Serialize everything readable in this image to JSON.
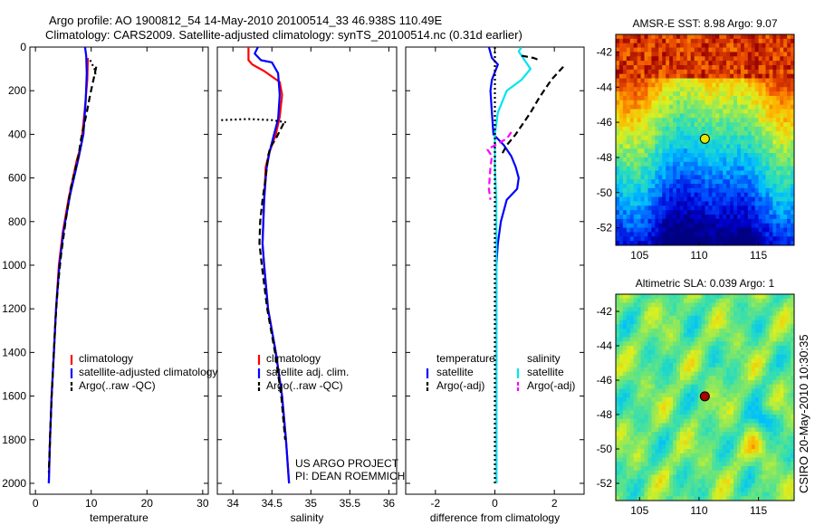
{
  "header": {
    "line1": "Argo profile: AO 1900812_54 14-May-2010 20100514_33 46.938S 110.49E",
    "line2": "Climatology: CARS2009. Satellite-adjusted climatology: synTS_20100514.nc (0.31d earlier)"
  },
  "side_label": "CSIRO 20-May-2010 10:30:35",
  "chart_data": [
    {
      "id": "temperature",
      "type": "line",
      "xlabel": "temperature",
      "ylabel": "",
      "xlim": [
        -1,
        31
      ],
      "ylim": [
        2050,
        0
      ],
      "xticks": [
        0,
        10,
        20,
        30
      ],
      "yticks": [
        0,
        200,
        400,
        600,
        800,
        1000,
        1200,
        1400,
        1600,
        1800,
        2000
      ],
      "legend": [
        {
          "label": "climatology",
          "color": "#ff0000",
          "dash": "solid"
        },
        {
          "label": "satellite-adjusted climatology",
          "color": "#0000ff",
          "dash": "solid"
        },
        {
          "label": "Argo(..raw -QC)",
          "color": "#000000",
          "dash": "dashed"
        }
      ],
      "series": [
        {
          "color": "#ff0000",
          "dash": "solid",
          "points": [
            [
              9.4,
              50
            ],
            [
              9.3,
              150
            ],
            [
              8.8,
              300
            ],
            [
              8.2,
              450
            ],
            [
              7.4,
              520
            ],
            [
              5.9,
              700
            ],
            [
              4.9,
              850
            ],
            [
              4.2,
              1000
            ],
            [
              3.7,
              1200
            ],
            [
              3.3,
              1400
            ],
            [
              2.9,
              1600
            ],
            [
              2.6,
              1800
            ],
            [
              2.4,
              2000
            ]
          ]
        },
        {
          "color": "#0000ff",
          "dash": "solid",
          "points": [
            [
              8.9,
              0
            ],
            [
              9.1,
              40
            ],
            [
              9.2,
              120
            ],
            [
              9.0,
              250
            ],
            [
              8.6,
              400
            ],
            [
              7.8,
              500
            ],
            [
              6.2,
              680
            ],
            [
              5.0,
              850
            ],
            [
              4.3,
              1000
            ],
            [
              3.7,
              1200
            ],
            [
              3.3,
              1400
            ],
            [
              2.9,
              1600
            ],
            [
              2.6,
              1800
            ],
            [
              2.4,
              2000
            ]
          ]
        },
        {
          "color": "#000000",
          "dash": "dashed",
          "points": [
            [
              10.9,
              90
            ],
            [
              10.4,
              150
            ],
            [
              9.8,
              220
            ],
            [
              9.2,
              300
            ],
            [
              8.2,
              420
            ],
            [
              7.7,
              500
            ],
            [
              6.3,
              650
            ],
            [
              5.4,
              800
            ],
            [
              4.6,
              950
            ],
            [
              4.0,
              1100
            ],
            [
              3.6,
              1250
            ],
            [
              3.3,
              1400
            ],
            [
              2.9,
              1600
            ],
            [
              2.6,
              1800
            ],
            [
              2.4,
              1950
            ]
          ]
        },
        {
          "color": "#000000",
          "dash": "dotted",
          "points": [
            [
              9.8,
              60
            ],
            [
              10.6,
              100
            ],
            [
              10.8,
              130
            ]
          ]
        }
      ]
    },
    {
      "id": "salinity",
      "type": "line",
      "xlabel": "salinity",
      "ylabel": "",
      "xlim": [
        33.8,
        36.1
      ],
      "ylim": [
        2050,
        0
      ],
      "xticks": [
        34,
        34.5,
        35,
        35.5,
        36
      ],
      "yticks": [
        0,
        200,
        400,
        600,
        800,
        1000,
        1200,
        1400,
        1600,
        1800,
        2000
      ],
      "legend": [
        {
          "label": "climatology",
          "color": "#ff0000",
          "dash": "solid"
        },
        {
          "label": "satellite adj. clim.",
          "color": "#0000ff",
          "dash": "solid"
        },
        {
          "label": "Argo(..raw -QC)",
          "color": "#000000",
          "dash": "dashed"
        }
      ],
      "annotations": [
        "US ARGO PROJECT",
        "PI: DEAN ROEMMICH"
      ],
      "series": [
        {
          "color": "#ff0000",
          "dash": "solid",
          "points": [
            [
              34.2,
              0
            ],
            [
              34.2,
              60
            ],
            [
              34.25,
              80
            ],
            [
              34.4,
              110
            ],
            [
              34.6,
              160
            ],
            [
              34.63,
              220
            ],
            [
              34.6,
              320
            ],
            [
              34.55,
              400
            ],
            [
              34.47,
              480
            ],
            [
              34.42,
              550
            ],
            [
              34.4,
              700
            ],
            [
              34.38,
              900
            ],
            [
              34.4,
              1000
            ],
            [
              34.45,
              1200
            ],
            [
              34.55,
              1400
            ],
            [
              34.63,
              1600
            ],
            [
              34.68,
              1800
            ],
            [
              34.72,
              2000
            ]
          ]
        },
        {
          "color": "#0000ff",
          "dash": "solid",
          "points": [
            [
              34.32,
              0
            ],
            [
              34.28,
              30
            ],
            [
              34.36,
              60
            ],
            [
              34.5,
              70
            ],
            [
              34.58,
              120
            ],
            [
              34.6,
              220
            ],
            [
              34.58,
              330
            ],
            [
              34.52,
              410
            ],
            [
              34.47,
              480
            ],
            [
              34.43,
              560
            ],
            [
              34.4,
              700
            ],
            [
              34.38,
              900
            ],
            [
              34.4,
              1000
            ],
            [
              34.45,
              1200
            ],
            [
              34.55,
              1400
            ],
            [
              34.63,
              1600
            ],
            [
              34.68,
              1800
            ],
            [
              34.72,
              2000
            ]
          ]
        },
        {
          "color": "#000000",
          "dash": "dashed",
          "points": [
            [
              34.65,
              350
            ],
            [
              34.55,
              420
            ],
            [
              34.48,
              460
            ],
            [
              34.45,
              500
            ],
            [
              34.42,
              600
            ],
            [
              34.38,
              700
            ],
            [
              34.35,
              800
            ],
            [
              34.34,
              900
            ],
            [
              34.37,
              1000
            ],
            [
              34.44,
              1200
            ],
            [
              34.54,
              1400
            ],
            [
              34.62,
              1600
            ],
            [
              34.67,
              1800
            ]
          ]
        },
        {
          "color": "#000000",
          "dash": "dotted",
          "points": [
            [
              33.85,
              335
            ],
            [
              34.2,
              330
            ],
            [
              34.5,
              335
            ],
            [
              34.68,
              345
            ]
          ]
        }
      ]
    },
    {
      "id": "difference",
      "type": "line",
      "xlabel": "difference from climatology",
      "ylabel": "",
      "xlim": [
        -3,
        3
      ],
      "ylim": [
        2050,
        0
      ],
      "xticks": [
        -2,
        0,
        2
      ],
      "yticks": [
        0,
        200,
        400,
        600,
        800,
        1000,
        1200,
        1400,
        1600,
        1800,
        2000
      ],
      "legend_groups": [
        {
          "title": "temperature",
          "entries": [
            {
              "label": "satellite",
              "color": "#0000ff",
              "dash": "solid"
            },
            {
              "label": "Argo(-adj)",
              "color": "#000000",
              "dash": "dashed"
            }
          ]
        },
        {
          "title": "salinity",
          "entries": [
            {
              "label": "satellite",
              "color": "#00e5ee",
              "dash": "solid"
            },
            {
              "label": "Argo(-adj)",
              "color": "#ff00ff",
              "dash": "dashed"
            }
          ]
        }
      ],
      "series": [
        {
          "color": "#0000ff",
          "dash": "solid",
          "points": [
            [
              -0.2,
              0
            ],
            [
              -0.1,
              50
            ],
            [
              0.1,
              80
            ],
            [
              -0.1,
              150
            ],
            [
              -0.15,
              200
            ],
            [
              -0.1,
              300
            ],
            [
              -0.05,
              400
            ],
            [
              0.3,
              450
            ],
            [
              0.55,
              500
            ],
            [
              0.7,
              550
            ],
            [
              0.8,
              600
            ],
            [
              0.75,
              650
            ],
            [
              0.4,
              700
            ],
            [
              0.2,
              800
            ],
            [
              0.1,
              900
            ],
            [
              0.05,
              1000
            ],
            [
              0.05,
              1200
            ],
            [
              0.05,
              1500
            ],
            [
              0.05,
              2000
            ]
          ]
        },
        {
          "color": "#00e5ee",
          "dash": "solid",
          "points": [
            [
              0.9,
              0
            ],
            [
              0.8,
              20
            ],
            [
              1.0,
              60
            ],
            [
              1.2,
              100
            ],
            [
              0.9,
              150
            ],
            [
              0.4,
              200
            ],
            [
              0.1,
              300
            ],
            [
              0.0,
              400
            ],
            [
              0.0,
              550
            ],
            [
              0.05,
              700
            ],
            [
              0.05,
              800
            ],
            [
              0.05,
              1000
            ],
            [
              0.05,
              1200
            ],
            [
              0.05,
              1500
            ],
            [
              0.05,
              2000
            ]
          ]
        },
        {
          "color": "#000000",
          "dash": "dashed",
          "points": [
            [
              2.3,
              90
            ],
            [
              1.9,
              150
            ],
            [
              1.5,
              230
            ],
            [
              1.2,
              300
            ],
            [
              0.7,
              400
            ],
            [
              0.4,
              450
            ],
            [
              0.2,
              500
            ]
          ]
        },
        {
          "color": "#000000",
          "dash": "dashed",
          "points": [
            [
              0.9,
              40
            ],
            [
              1.3,
              50
            ],
            [
              1.5,
              60
            ]
          ]
        },
        {
          "color": "#ff00ff",
          "dash": "dashed",
          "points": [
            [
              0.55,
              390
            ],
            [
              0.4,
              420
            ],
            [
              0.0,
              450
            ],
            [
              -0.25,
              470
            ],
            [
              -0.1,
              500
            ],
            [
              -0.15,
              550
            ],
            [
              -0.2,
              650
            ],
            [
              -0.15,
              700
            ]
          ]
        },
        {
          "color": "#000000",
          "dash": "dotted",
          "points": [
            [
              0,
              0
            ],
            [
              0,
              2000
            ]
          ]
        }
      ]
    },
    {
      "id": "sst_map",
      "type": "heatmap",
      "title": "AMSR-E SST: 8.98 Argo: 9.07",
      "xlim": [
        103,
        118
      ],
      "ylim": [
        -53,
        -41
      ],
      "xticks": [
        105,
        110,
        115
      ],
      "yticks": [
        -42,
        -44,
        -46,
        -48,
        -50,
        -52
      ],
      "marker": {
        "lon": 110.49,
        "lat": -46.94,
        "color": "#e6e600"
      }
    },
    {
      "id": "sla_map",
      "type": "heatmap",
      "title": "Altimetric SLA: 0.039 Argo: 1",
      "xlim": [
        103,
        118
      ],
      "ylim": [
        -53,
        -41
      ],
      "xticks": [
        105,
        110,
        115
      ],
      "yticks": [
        -42,
        -44,
        -46,
        -48,
        -50,
        -52
      ],
      "marker": {
        "lon": 110.49,
        "lat": -46.94,
        "color": "#aa0000"
      }
    }
  ]
}
